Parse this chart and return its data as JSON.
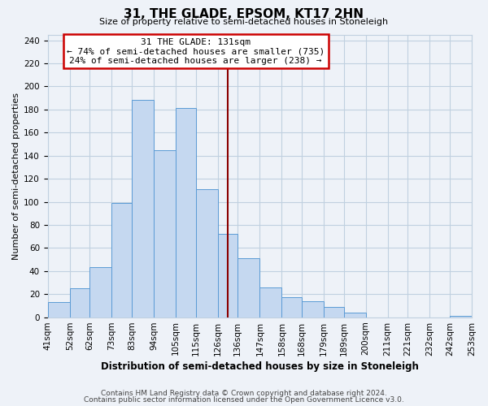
{
  "title": "31, THE GLADE, EPSOM, KT17 2HN",
  "subtitle": "Size of property relative to semi-detached houses in Stoneleigh",
  "xlabel": "Distribution of semi-detached houses by size in Stoneleigh",
  "ylabel": "Number of semi-detached properties",
  "footer_line1": "Contains HM Land Registry data © Crown copyright and database right 2024.",
  "footer_line2": "Contains public sector information licensed under the Open Government Licence v3.0.",
  "bin_labels": [
    "41sqm",
    "52sqm",
    "62sqm",
    "73sqm",
    "83sqm",
    "94sqm",
    "105sqm",
    "115sqm",
    "126sqm",
    "136sqm",
    "147sqm",
    "158sqm",
    "168sqm",
    "179sqm",
    "189sqm",
    "200sqm",
    "211sqm",
    "221sqm",
    "232sqm",
    "242sqm",
    "253sqm"
  ],
  "bin_edges": [
    41,
    52,
    62,
    73,
    83,
    94,
    105,
    115,
    126,
    136,
    147,
    158,
    168,
    179,
    189,
    200,
    211,
    221,
    232,
    242,
    253
  ],
  "bar_heights": [
    13,
    25,
    43,
    99,
    188,
    145,
    181,
    111,
    72,
    51,
    26,
    17,
    14,
    9,
    4,
    0,
    0,
    0,
    0,
    1
  ],
  "bar_color": "#c5d8f0",
  "bar_edge_color": "#5b9bd5",
  "grid_color": "#c0d0e0",
  "property_value": 131,
  "property_line_color": "#8b0000",
  "annotation_text_line1": "31 THE GLADE: 131sqm",
  "annotation_text_line2": "← 74% of semi-detached houses are smaller (735)",
  "annotation_text_line3": "24% of semi-detached houses are larger (238) →",
  "annotation_box_edge_color": "#cc0000",
  "ylim": [
    0,
    245
  ],
  "yticks": [
    0,
    20,
    40,
    60,
    80,
    100,
    120,
    140,
    160,
    180,
    200,
    220,
    240
  ],
  "bg_color": "#eef2f8",
  "plot_bg_color": "#eef2f8",
  "title_fontsize": 11,
  "subtitle_fontsize": 8,
  "ylabel_fontsize": 8,
  "xlabel_fontsize": 8.5,
  "footer_fontsize": 6.5,
  "tick_fontsize": 7.5,
  "annot_fontsize": 8
}
